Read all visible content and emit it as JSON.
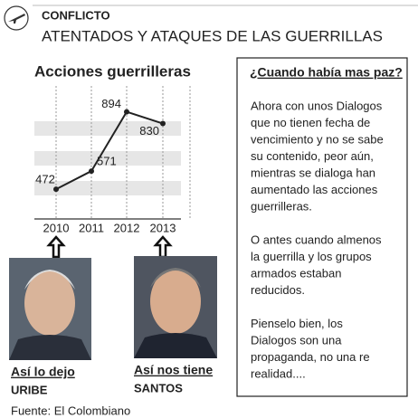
{
  "header": {
    "kicker": "CONFLICTO",
    "title": "ATENTADOS Y ATAQUES DE LAS GUERRILLAS"
  },
  "chart_data": {
    "type": "line",
    "title": "Acciones guerrilleras",
    "categories": [
      "2010",
      "2011",
      "2012",
      "2013"
    ],
    "values": [
      472,
      571,
      894,
      830
    ],
    "color": "#222222",
    "ylim": [
      310,
      1030
    ]
  },
  "captions": [
    {
      "label": "Así lo dejo",
      "name": "URIBE"
    },
    {
      "label": "Así nos tiene",
      "name": "SANTOS"
    }
  ],
  "source": "Fuente: El Colombiano",
  "sidebar": {
    "title": "¿Cuando había mas paz?",
    "paragraphs": [
      [
        "Ahora con unos Dialogos",
        "que no tienen fecha de",
        "vencimiento y no se sabe",
        "su contenido, peor aún,",
        "mientras se dialoga han",
        "aumentado las acciones",
        "guerrilleras."
      ],
      [
        "O antes cuando almenos",
        "la guerrilla y los grupos",
        "armados estaban",
        "reducidos."
      ],
      [
        "Pienselo bien, los",
        "Dialogos son una",
        "propaganda, no una re",
        "realidad...."
      ]
    ]
  }
}
